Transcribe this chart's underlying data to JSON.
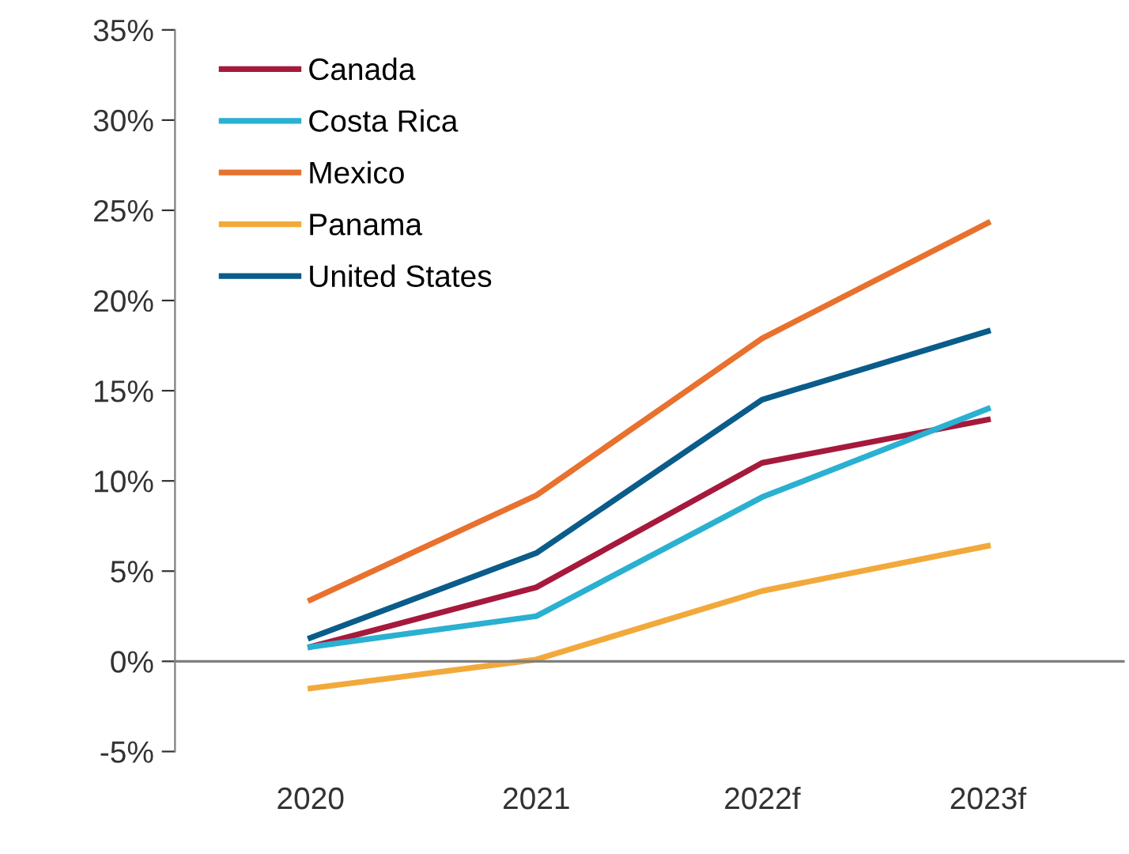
{
  "chart_data": {
    "type": "line",
    "categories": [
      "2020",
      "2021",
      "2022f",
      "2023f"
    ],
    "series": [
      {
        "name": "Canada",
        "color": "#a6193c",
        "values": [
          0.8,
          4.1,
          11.0,
          13.4
        ]
      },
      {
        "name": "Costa Rica",
        "color": "#2ab0d0",
        "values": [
          0.8,
          2.5,
          9.1,
          14.0
        ]
      },
      {
        "name": "Mexico",
        "color": "#e8712e",
        "values": [
          3.4,
          9.2,
          17.9,
          24.3
        ]
      },
      {
        "name": "Panama",
        "color": "#f2a93b",
        "values": [
          -1.5,
          0.1,
          3.9,
          6.4
        ]
      },
      {
        "name": "United States",
        "color": "#0a5c8a",
        "values": [
          1.3,
          6.0,
          14.5,
          18.3
        ]
      }
    ],
    "ylim": [
      -5,
      35
    ],
    "yticks": [
      {
        "value": -5,
        "label": "-5%"
      },
      {
        "value": 0,
        "label": "0%"
      },
      {
        "value": 5,
        "label": "5%"
      },
      {
        "value": 10,
        "label": "10%"
      },
      {
        "value": 15,
        "label": "15%"
      },
      {
        "value": 20,
        "label": "20%"
      },
      {
        "value": 25,
        "label": "25%"
      },
      {
        "value": 30,
        "label": "30%"
      },
      {
        "value": 35,
        "label": "35%"
      }
    ],
    "ref_lines": [
      {
        "axis": "y",
        "value": 0,
        "color": "#7f7f7f"
      }
    ],
    "grid": false,
    "legend": "top left",
    "marker": "none",
    "line_style": "solid"
  }
}
